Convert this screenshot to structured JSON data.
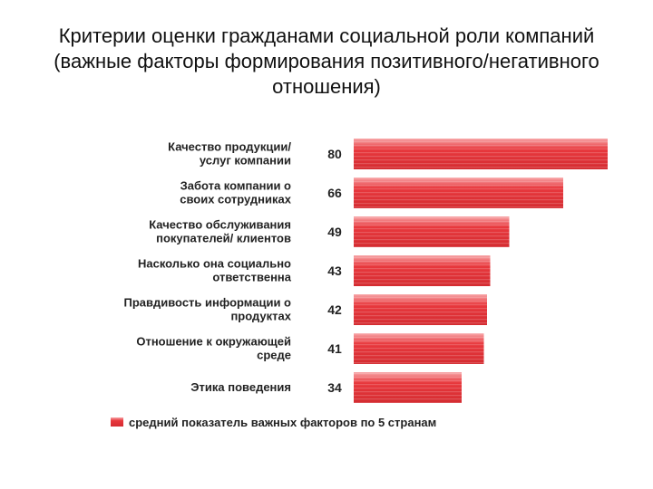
{
  "title": {
    "line1": "Критерии оценки гражданами социальной роли компаний",
    "line2": "(важные факторы формирования позитивного/негативного",
    "line3": "отношения)"
  },
  "chart_data": {
    "type": "bar",
    "orientation": "horizontal",
    "title": "Критерии оценки гражданами социальной роли компаний (важные факторы формирования позитивного/негативного отношения)",
    "categories": [
      [
        "Качество продукции/",
        "услуг компании"
      ],
      [
        "Забота компании о",
        "своих сотрудниках"
      ],
      [
        "Качество обслуживания",
        "покупателей/ клиентов"
      ],
      [
        "Насколько она социально",
        "ответственна"
      ],
      [
        "Правдивость информации о",
        "продуктах"
      ],
      [
        "Отношение к окружающей",
        "среде"
      ],
      [
        "Этика поведения"
      ]
    ],
    "series": [
      {
        "name": "средний показатель важных факторов по 5 странам",
        "values": [
          80,
          66,
          49,
          43,
          42,
          41,
          34
        ]
      }
    ],
    "legend": "bottom",
    "bar_color": "#e8383d",
    "xlim": [
      0,
      80
    ]
  }
}
